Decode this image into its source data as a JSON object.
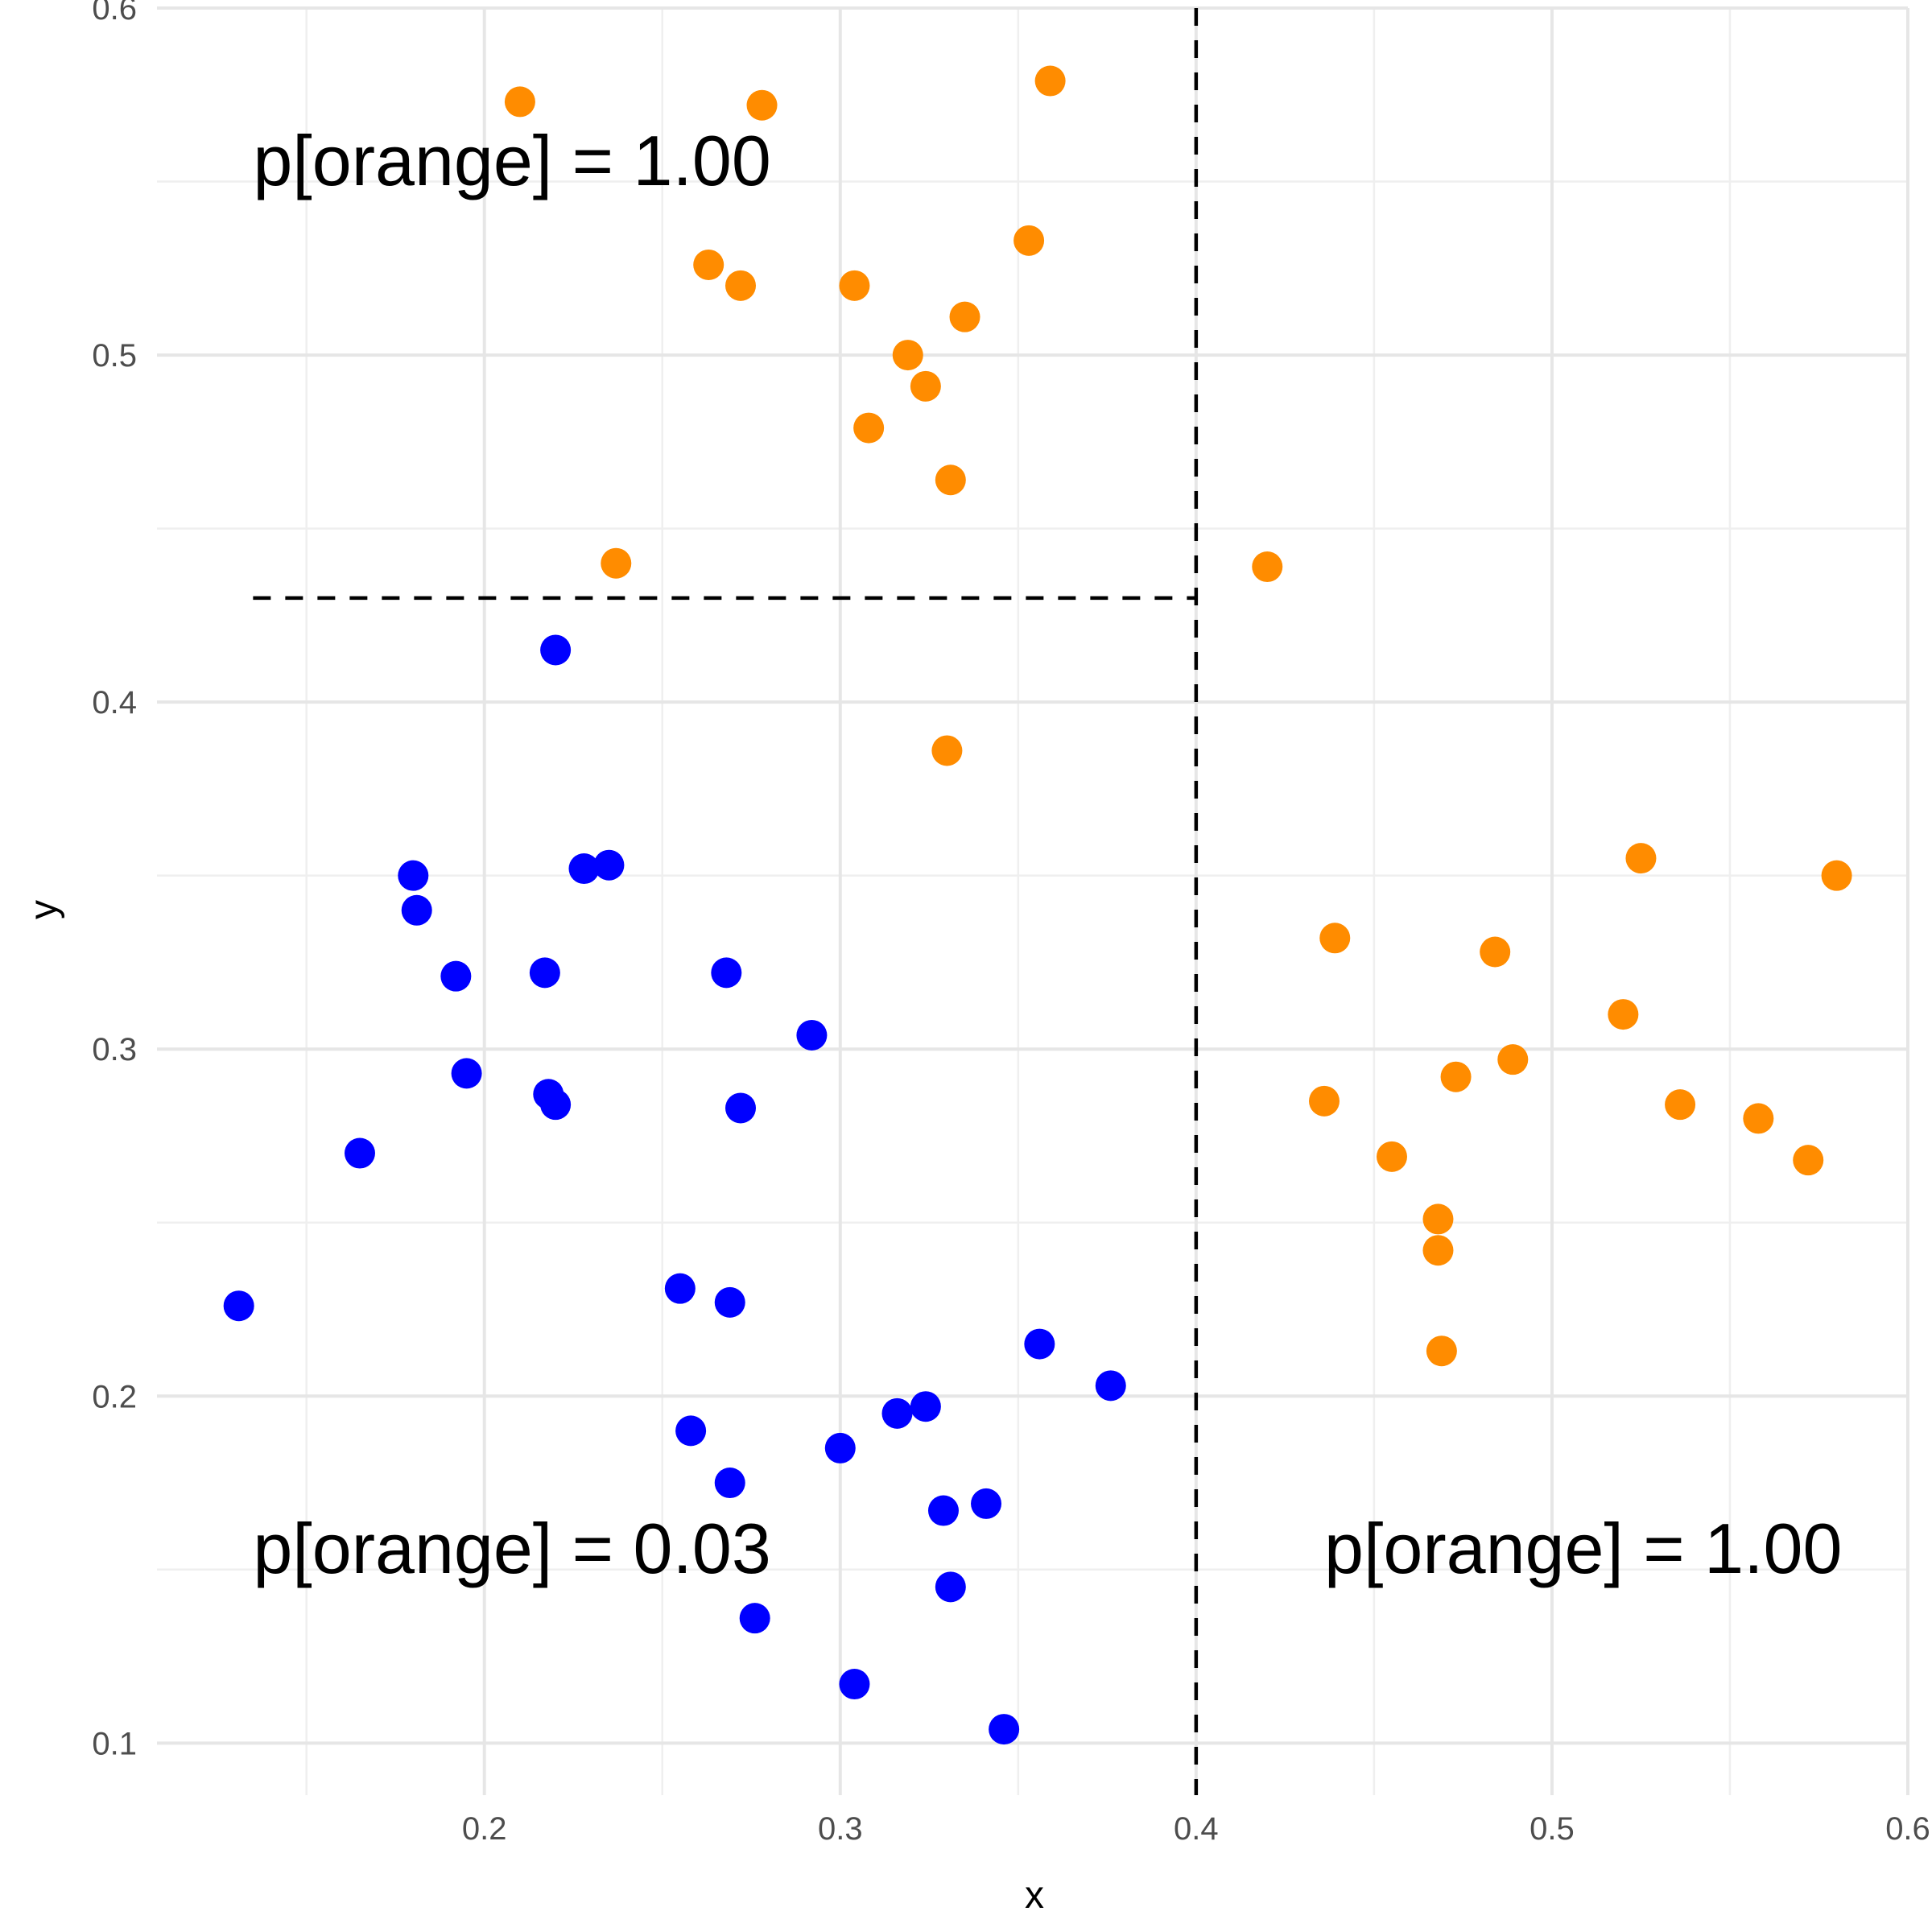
{
  "chart_data": {
    "type": "scatter",
    "xlabel": "x",
    "ylabel": "y",
    "xlim": [
      0.108,
      0.6
    ],
    "ylim": [
      0.085,
      0.6
    ],
    "x_ticks": [
      0.2,
      0.3,
      0.4,
      0.5,
      0.6
    ],
    "y_ticks": [
      0.1,
      0.2,
      0.3,
      0.4,
      0.5,
      0.6
    ],
    "x_tick_labels": [
      "0.2",
      "0.3",
      "0.4",
      "0.5",
      "0.6"
    ],
    "y_tick_labels": [
      "0.1",
      "0.2",
      "0.3",
      "0.4",
      "0.5",
      "0.6"
    ],
    "x_minor": [
      0.15,
      0.25,
      0.35,
      0.45,
      0.55
    ],
    "y_minor": [
      0.15,
      0.25,
      0.35,
      0.45,
      0.55
    ],
    "grid": true,
    "legend": "none",
    "series": [
      {
        "color": "#ff8c00",
        "points": [
          [
            0.21,
            0.573
          ],
          [
            0.278,
            0.572
          ],
          [
            0.359,
            0.579
          ],
          [
            0.263,
            0.526
          ],
          [
            0.272,
            0.52
          ],
          [
            0.304,
            0.52
          ],
          [
            0.353,
            0.533
          ],
          [
            0.335,
            0.511
          ],
          [
            0.319,
            0.5
          ],
          [
            0.324,
            0.491
          ],
          [
            0.308,
            0.479
          ],
          [
            0.331,
            0.464
          ],
          [
            0.237,
            0.44
          ],
          [
            0.42,
            0.439
          ],
          [
            0.33,
            0.386
          ],
          [
            0.525,
            0.355
          ],
          [
            0.58,
            0.35
          ],
          [
            0.439,
            0.332
          ],
          [
            0.484,
            0.328
          ],
          [
            0.52,
            0.31
          ],
          [
            0.489,
            0.297
          ],
          [
            0.473,
            0.292
          ],
          [
            0.436,
            0.285
          ],
          [
            0.536,
            0.284
          ],
          [
            0.558,
            0.28
          ],
          [
            0.572,
            0.268
          ],
          [
            0.455,
            0.269
          ],
          [
            0.468,
            0.251
          ],
          [
            0.468,
            0.242
          ],
          [
            0.469,
            0.213
          ]
        ]
      },
      {
        "color": "#0000ff",
        "points": [
          [
            0.22,
            0.415
          ],
          [
            0.235,
            0.353
          ],
          [
            0.228,
            0.352
          ],
          [
            0.18,
            0.35
          ],
          [
            0.181,
            0.34
          ],
          [
            0.192,
            0.321
          ],
          [
            0.217,
            0.322
          ],
          [
            0.268,
            0.322
          ],
          [
            0.292,
            0.304
          ],
          [
            0.195,
            0.293
          ],
          [
            0.218,
            0.287
          ],
          [
            0.22,
            0.284
          ],
          [
            0.272,
            0.283
          ],
          [
            0.165,
            0.27
          ],
          [
            0.131,
            0.226
          ],
          [
            0.255,
            0.231
          ],
          [
            0.269,
            0.227
          ],
          [
            0.356,
            0.215
          ],
          [
            0.376,
            0.203
          ],
          [
            0.324,
            0.197
          ],
          [
            0.316,
            0.195
          ],
          [
            0.258,
            0.19
          ],
          [
            0.3,
            0.185
          ],
          [
            0.269,
            0.175
          ],
          [
            0.341,
            0.169
          ],
          [
            0.329,
            0.167
          ],
          [
            0.331,
            0.145
          ],
          [
            0.276,
            0.136
          ],
          [
            0.304,
            0.117
          ],
          [
            0.346,
            0.104
          ]
        ]
      }
    ],
    "reference_lines": [
      {
        "orientation": "vertical",
        "x": 0.4,
        "y_from": 0.085,
        "y_to": 0.6
      },
      {
        "orientation": "horizontal",
        "y": 0.43,
        "x_from": 0.135,
        "x_to": 0.4
      }
    ],
    "annotations": [
      {
        "text": "p[orange] = 1.00",
        "x": 0.135,
        "y": 0.549
      },
      {
        "text": "p[orange] = 0.03",
        "x": 0.135,
        "y": 0.149
      },
      {
        "text": "p[orange] = 1.00",
        "x": 0.436,
        "y": 0.149
      }
    ]
  }
}
